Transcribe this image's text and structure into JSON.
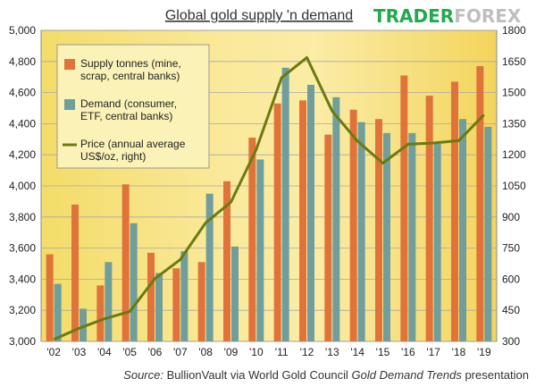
{
  "logo": {
    "part1": "TRADER",
    "part2": "FOREX"
  },
  "chart_data": {
    "type": "bar",
    "title": "Global gold supply 'n demand",
    "categories": [
      "'02",
      "'03",
      "'04",
      "'05",
      "'06",
      "'07",
      "'08",
      "'09",
      "'10",
      "'11",
      "'12",
      "'13",
      "'14",
      "'15",
      "'16",
      "'17",
      "'18",
      "'19"
    ],
    "series": [
      {
        "name": "Supply tonnes (mine, scrap, central banks)",
        "type": "bar",
        "axis": "left",
        "color": "#e0733a",
        "values": [
          3560,
          3880,
          3360,
          4010,
          3570,
          3470,
          3510,
          4030,
          4310,
          4530,
          4550,
          4330,
          4490,
          4430,
          4710,
          4580,
          4670,
          4770
        ]
      },
      {
        "name": "Demand (consumer, ETF, central banks)",
        "type": "bar",
        "axis": "left",
        "color": "#6f9e9c",
        "values": [
          3370,
          3210,
          3510,
          3760,
          3440,
          3580,
          3950,
          3610,
          4170,
          4760,
          4650,
          4570,
          4410,
          4340,
          4340,
          4270,
          4430,
          4380
        ]
      },
      {
        "name": "Price (annual average US$/oz, right)",
        "type": "line",
        "axis": "right",
        "color": "#6b7a10",
        "values": [
          310,
          363,
          409,
          444,
          603,
          695,
          872,
          972,
          1225,
          1572,
          1669,
          1411,
          1266,
          1160,
          1251,
          1257,
          1268,
          1393
        ]
      }
    ],
    "y_left": {
      "min": 3000,
      "max": 5000,
      "step": 200,
      "ticks": [
        "3,000",
        "3,200",
        "3,400",
        "3,600",
        "3,800",
        "4,000",
        "4,200",
        "4,400",
        "4,600",
        "4,800",
        "5,000"
      ]
    },
    "y_right": {
      "min": 300,
      "max": 1800,
      "step": 150,
      "ticks": [
        "300",
        "450",
        "600",
        "750",
        "900",
        "1050",
        "1200",
        "1350",
        "1500",
        "1650",
        "1800"
      ]
    },
    "legend": {
      "position": "top-left",
      "entries": [
        {
          "lines": [
            "Supply tonnes (mine,",
            "scrap, central banks)"
          ],
          "kind": "bar",
          "color": "#e0733a"
        },
        {
          "lines": [
            "Demand (consumer,",
            "ETF, central banks)"
          ],
          "kind": "bar",
          "color": "#6f9e9c"
        },
        {
          "lines": [
            "Price (annual average",
            "US$/oz, right)"
          ],
          "kind": "line",
          "color": "#6b7a10"
        }
      ]
    },
    "grid": true,
    "source": {
      "prefix": "Source: ",
      "org": "BullionVault via World Gold Council ",
      "report": "Gold Demand Trends",
      "suffix": " presentation"
    }
  }
}
